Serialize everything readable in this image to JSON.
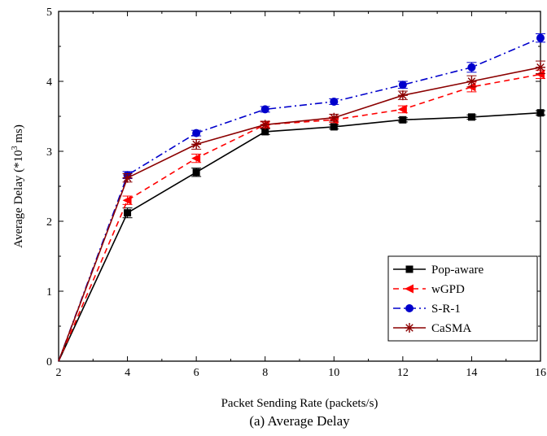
{
  "chart_data": {
    "type": "line",
    "xlabel": "Packet Sending Rate (packets/s)",
    "ylabel_parts": [
      "Average Delay (*10",
      "3",
      " ms)"
    ],
    "caption": "(a) Average Delay",
    "x": [
      2,
      4,
      6,
      8,
      10,
      12,
      14,
      16
    ],
    "xlim": [
      2,
      16
    ],
    "ylim": [
      0,
      5
    ],
    "xticks": [
      "2",
      "4",
      "6",
      "8",
      "10",
      "12",
      "14",
      "16"
    ],
    "yticks": [
      "0",
      "1",
      "2",
      "3",
      "4",
      "5"
    ],
    "legend_position": "bottom-right",
    "grid": false,
    "series": [
      {
        "name": "Pop-aware",
        "color": "#000000",
        "style": "solid",
        "marker": "square",
        "values": [
          0,
          2.12,
          2.7,
          3.28,
          3.35,
          3.45,
          3.49,
          3.55
        ],
        "errors": [
          0,
          0.07,
          0.06,
          0.04,
          0.03,
          0.03,
          0.03,
          0.03
        ]
      },
      {
        "name": "wGPD",
        "color": "#ff0000",
        "style": "dashed",
        "marker": "triangle-left",
        "values": [
          0,
          2.3,
          2.9,
          3.38,
          3.45,
          3.6,
          3.92,
          4.1
        ],
        "errors": [
          0,
          0.06,
          0.06,
          0.04,
          0.04,
          0.05,
          0.07,
          0.06
        ]
      },
      {
        "name": "S-R-1",
        "color": "#0000cc",
        "style": "dashdot",
        "marker": "circle",
        "values": [
          0,
          2.66,
          3.26,
          3.6,
          3.71,
          3.95,
          4.2,
          4.62
        ],
        "errors": [
          0,
          0.05,
          0.04,
          0.04,
          0.04,
          0.05,
          0.07,
          0.06
        ]
      },
      {
        "name": "CaSMA",
        "color": "#8b0000",
        "style": "solid",
        "marker": "asterisk",
        "values": [
          0,
          2.62,
          3.1,
          3.38,
          3.48,
          3.8,
          4.0,
          4.2
        ],
        "errors": [
          0,
          0.06,
          0.07,
          0.05,
          0.05,
          0.06,
          0.08,
          0.09
        ]
      }
    ]
  }
}
